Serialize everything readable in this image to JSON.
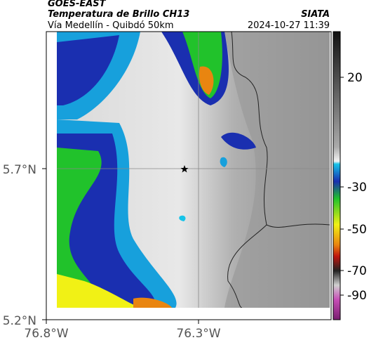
{
  "header": {
    "title": "GOES-EAST",
    "subtitle": "Temperatura de Brillo CH13",
    "route": "Vía Medellín - Quibdó 50km",
    "source": "SIATA",
    "timestamp": "2024-10-27 11:39"
  },
  "map": {
    "y_ticks": [
      "5.7°N",
      "5.2°N"
    ],
    "x_ticks": [
      "76.8°W",
      "76.3°W"
    ],
    "colorbar_ticks": [
      "20",
      "-30",
      "-50",
      "-70",
      "-90"
    ]
  }
}
